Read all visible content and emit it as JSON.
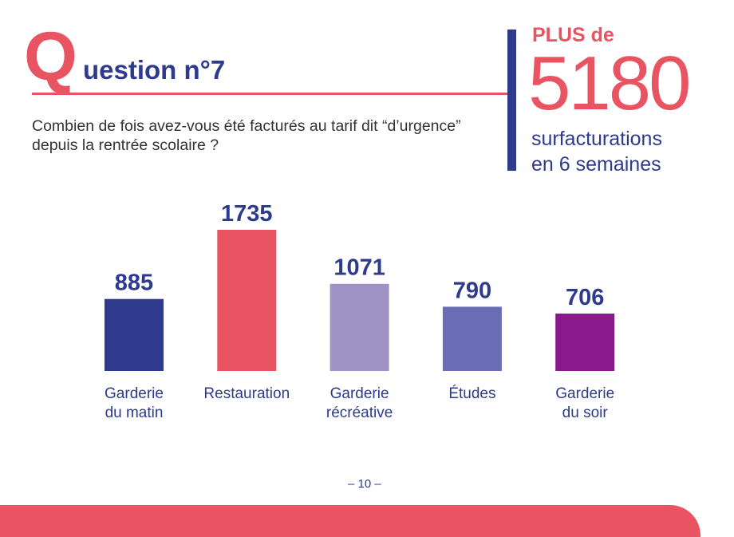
{
  "header": {
    "q_letter": "Q",
    "title": "uestion n°7",
    "question": "Combien de fois avez-vous été facturés au tarif dit “d’urgence” depuis la rentrée scolaire ?"
  },
  "highlight": {
    "prefix": "PLUS de",
    "number": "5180",
    "line1": "surfacturations",
    "line2": "en 6 semaines"
  },
  "chart_data": {
    "type": "bar",
    "categories": [
      [
        "Garderie",
        "du matin"
      ],
      [
        "Restauration"
      ],
      [
        "Garderie",
        "récréative"
      ],
      [
        "Études"
      ],
      [
        "Garderie",
        "du soir"
      ]
    ],
    "values": [
      885,
      1735,
      1071,
      790,
      706
    ],
    "colors": [
      "#2e3a8c",
      "#e85462",
      "#9f93c6",
      "#6a6db3",
      "#8a1a8c"
    ],
    "title": "",
    "xlabel": "",
    "ylabel": "",
    "ylim": [
      0,
      1735
    ]
  },
  "footer": {
    "page": "– 10 –"
  },
  "colors": {
    "accent": "#e85462",
    "navy": "#2e3a8c"
  }
}
